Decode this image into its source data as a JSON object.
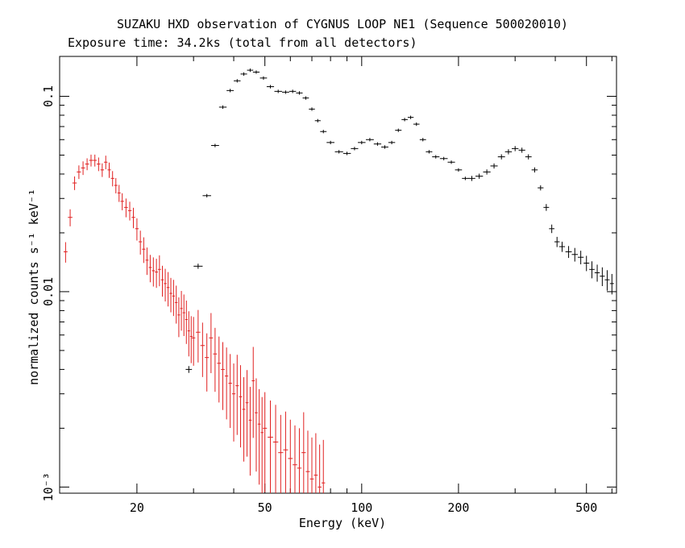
{
  "chart_data": {
    "type": "scatter",
    "title": "SUZAKU HXD observation of CYGNUS LOOP NE1 (Sequence 500020010)",
    "subtitle": "Exposure time: 34.2ks (total from all detectors)",
    "xlabel": "Energy (keV)",
    "ylabel": "normalized counts s⁻¹ keV⁻¹",
    "xscale": "log",
    "yscale": "log",
    "xlim": [
      11.5,
      620
    ],
    "ylim": [
      0.00093,
      0.16
    ],
    "x_ticks": [
      {
        "value": 20,
        "label": "20"
      },
      {
        "value": 50,
        "label": "50"
      },
      {
        "value": 100,
        "label": "100"
      },
      {
        "value": 200,
        "label": "200"
      },
      {
        "value": 500,
        "label": "500"
      }
    ],
    "y_ticks": [
      {
        "value": 0.1,
        "label": "0.1"
      },
      {
        "value": 0.01,
        "label": "0.01"
      },
      {
        "value": 0.001,
        "label": "10⁻³"
      }
    ],
    "grid": false,
    "series": [
      {
        "color": "#000000",
        "x": [
          29.0,
          31.0,
          33.0,
          35.0,
          37.0,
          39.0,
          41.0,
          43.0,
          45.0,
          47.0,
          49.5,
          52.0,
          55.0,
          58.0,
          61.0,
          64.0,
          67.0,
          70.0,
          73.0,
          76.0,
          80.0,
          85.0,
          90.0,
          95.0,
          100.0,
          106.0,
          112.0,
          118.0,
          124.0,
          130.0,
          136.0,
          142.0,
          148.0,
          155.0,
          162.0,
          170.0,
          180.0,
          190.0,
          200.0,
          210.0,
          220.0,
          232.0,
          245.0,
          258.0,
          272.0,
          286.0,
          300.0,
          315.0,
          330.0,
          345.0,
          360.0,
          375.0,
          390.0,
          405.0,
          420.0,
          440.0,
          460.0,
          480.0,
          500.0,
          520.0,
          540.0,
          560.0,
          580.0,
          600.0
        ],
        "y": [
          0.004,
          0.0135,
          0.031,
          0.056,
          0.088,
          0.107,
          0.12,
          0.13,
          0.136,
          0.133,
          0.124,
          0.112,
          0.106,
          0.105,
          0.106,
          0.104,
          0.098,
          0.086,
          0.075,
          0.066,
          0.058,
          0.052,
          0.051,
          0.054,
          0.058,
          0.06,
          0.057,
          0.055,
          0.058,
          0.067,
          0.076,
          0.078,
          0.072,
          0.06,
          0.052,
          0.049,
          0.048,
          0.046,
          0.042,
          0.038,
          0.038,
          0.039,
          0.041,
          0.044,
          0.049,
          0.052,
          0.054,
          0.053,
          0.049,
          0.042,
          0.034,
          0.027,
          0.021,
          0.018,
          0.017,
          0.016,
          0.0155,
          0.015,
          0.014,
          0.013,
          0.0125,
          0.012,
          0.0115,
          0.011
        ],
        "yerr_frac": [
          0.04,
          0.03,
          0.02,
          0.02,
          0.02,
          0.02,
          0.02,
          0.02,
          0.02,
          0.02,
          0.02,
          0.02,
          0.02,
          0.02,
          0.02,
          0.02,
          0.02,
          0.02,
          0.02,
          0.02,
          0.02,
          0.02,
          0.02,
          0.02,
          0.02,
          0.02,
          0.02,
          0.02,
          0.02,
          0.02,
          0.02,
          0.02,
          0.02,
          0.02,
          0.02,
          0.02,
          0.02,
          0.02,
          0.02,
          0.02,
          0.03,
          0.03,
          0.03,
          0.03,
          0.03,
          0.03,
          0.03,
          0.03,
          0.03,
          0.03,
          0.03,
          0.04,
          0.05,
          0.06,
          0.06,
          0.07,
          0.08,
          0.08,
          0.09,
          0.1,
          0.1,
          0.11,
          0.12,
          0.12
        ]
      },
      {
        "color": "#e02020",
        "x": [
          12.0,
          12.4,
          12.8,
          13.2,
          13.6,
          14.0,
          14.4,
          14.8,
          15.2,
          15.6,
          16.0,
          16.4,
          16.8,
          17.2,
          17.6,
          18.0,
          18.5,
          19.0,
          19.5,
          20.0,
          20.5,
          21.0,
          21.5,
          22.0,
          22.5,
          23.0,
          23.5,
          24.0,
          24.5,
          25.0,
          25.5,
          26.0,
          26.5,
          27.0,
          27.5,
          28.0,
          28.5,
          29.0,
          29.5,
          30.0,
          31.0,
          32.0,
          33.0,
          34.0,
          35.0,
          36.0,
          37.0,
          38.0,
          39.0,
          40.0,
          41.0,
          42.0,
          43.0,
          44.0,
          45.0,
          46.0,
          47.0,
          48.0,
          49.0,
          50.0,
          52.0,
          54.0,
          56.0,
          58.0,
          60.0,
          62.0,
          64.0,
          66.0,
          68.0,
          70.0,
          72.0,
          74.0,
          76.0
        ],
        "y": [
          0.016,
          0.024,
          0.036,
          0.041,
          0.043,
          0.045,
          0.047,
          0.047,
          0.045,
          0.042,
          0.046,
          0.042,
          0.038,
          0.035,
          0.032,
          0.029,
          0.027,
          0.026,
          0.024,
          0.021,
          0.018,
          0.0165,
          0.0145,
          0.0133,
          0.0128,
          0.0126,
          0.013,
          0.0115,
          0.011,
          0.0105,
          0.0098,
          0.0095,
          0.0088,
          0.0076,
          0.0082,
          0.0078,
          0.0072,
          0.0063,
          0.0059,
          0.0058,
          0.0062,
          0.0053,
          0.0046,
          0.0058,
          0.0048,
          0.0043,
          0.004,
          0.0037,
          0.0034,
          0.003,
          0.0033,
          0.0029,
          0.0025,
          0.0027,
          0.0022,
          0.0035,
          0.0024,
          0.0021,
          0.0019,
          0.002,
          0.0018,
          0.0017,
          0.0015,
          0.00155,
          0.0014,
          0.0013,
          0.00125,
          0.0015,
          0.0012,
          0.0011,
          0.00115,
          0.001,
          0.00105
        ],
        "yerr_frac": [
          0.12,
          0.1,
          0.08,
          0.08,
          0.08,
          0.07,
          0.07,
          0.07,
          0.08,
          0.08,
          0.08,
          0.09,
          0.09,
          0.09,
          0.1,
          0.1,
          0.11,
          0.11,
          0.12,
          0.13,
          0.14,
          0.15,
          0.16,
          0.16,
          0.17,
          0.17,
          0.18,
          0.18,
          0.19,
          0.2,
          0.2,
          0.21,
          0.22,
          0.23,
          0.23,
          0.24,
          0.25,
          0.26,
          0.27,
          0.28,
          0.3,
          0.31,
          0.33,
          0.34,
          0.36,
          0.37,
          0.38,
          0.4,
          0.41,
          0.43,
          0.44,
          0.45,
          0.46,
          0.47,
          0.48,
          0.49,
          0.5,
          0.51,
          0.52,
          0.53,
          0.54,
          0.55,
          0.56,
          0.57,
          0.58,
          0.59,
          0.6,
          0.61,
          0.62,
          0.63,
          0.64,
          0.65,
          0.66
        ]
      }
    ]
  }
}
